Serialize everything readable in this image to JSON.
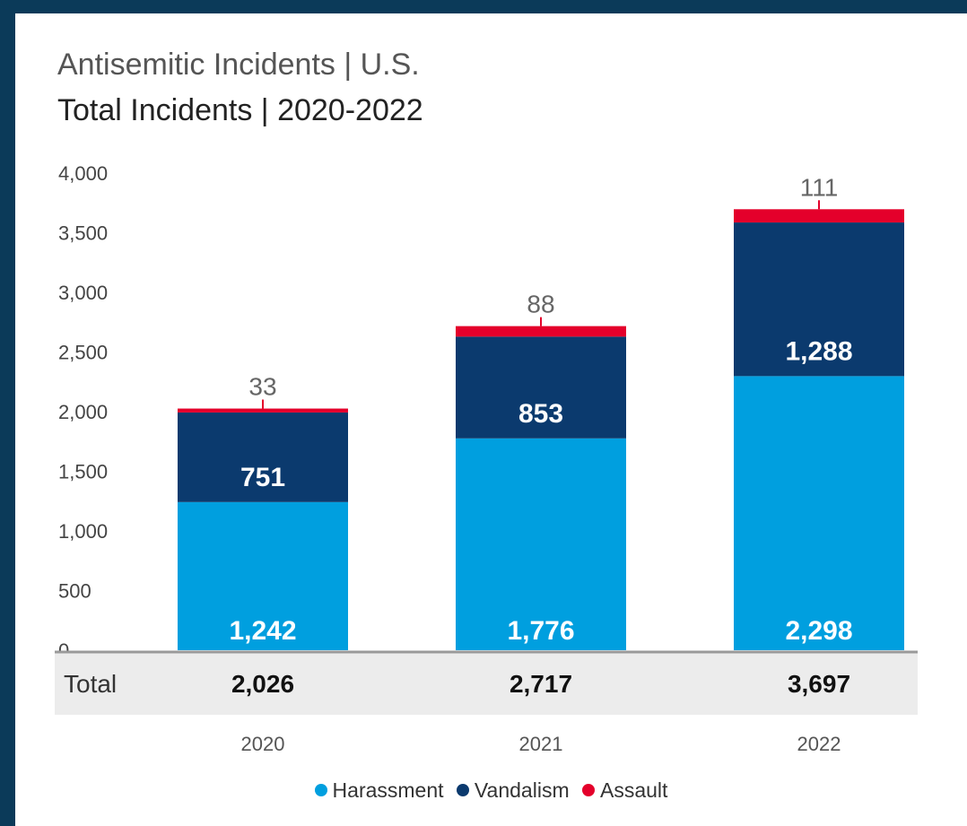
{
  "chart_data": {
    "type": "bar",
    "stacked": true,
    "title": "Antisemitic Incidents | U.S.",
    "subtitle": "Total Incidents | 2020-2022",
    "categories": [
      "2020",
      "2021",
      "2022"
    ],
    "series": [
      {
        "name": "Harassment",
        "color": "#009fdf",
        "values": [
          1242,
          1776,
          2298
        ],
        "labels": [
          "1,242",
          "1,776",
          "2,298"
        ]
      },
      {
        "name": "Vandalism",
        "color": "#0b3a6e",
        "values": [
          751,
          853,
          1288
        ],
        "labels": [
          "751",
          "853",
          "1,288"
        ]
      },
      {
        "name": "Assault",
        "color": "#e4002b",
        "values": [
          33,
          88,
          111
        ],
        "labels": [
          "33",
          "88",
          "111"
        ]
      }
    ],
    "ylim": [
      0,
      4000
    ],
    "yticks": [
      0,
      500,
      1000,
      1500,
      2000,
      2500,
      3000,
      3500,
      4000
    ],
    "ytick_labels": [
      "0",
      "500",
      "1,000",
      "1,500",
      "2,000",
      "2,500",
      "3,000",
      "3,500",
      "4,000"
    ],
    "totals_row": {
      "label": "Total",
      "values": [
        "2,026",
        "2,717",
        "3,697"
      ]
    },
    "legend_position": "bottom",
    "grid": false
  }
}
